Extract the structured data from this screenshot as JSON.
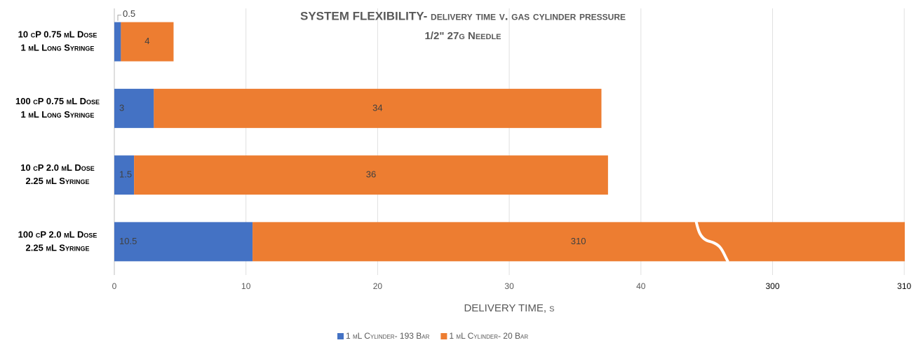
{
  "chart_data": {
    "type": "stacked-barh",
    "title": "SYSTEM FLEXIBILITY- delivery time v. gas cylinder pressure",
    "subtitle": "1/2\" 27g Needle",
    "x_label": "DELIVERY TIME, s",
    "categories": [
      [
        "10 cP 0.75 mL Dose",
        "1 mL Long Syringe"
      ],
      [
        "100 cP 0.75 mL Dose",
        "1 mL Long Syringe"
      ],
      [
        "10 cP 2.0 mL Dose",
        "2.25 mL Syringe"
      ],
      [
        "100 cP 2.0 mL Dose",
        "2.25 mL Syringe"
      ]
    ],
    "series": [
      {
        "name": "1 mL Cylinder- 193 Bar",
        "color": "#4472c4",
        "values": [
          0.5,
          3,
          1.5,
          10.5
        ]
      },
      {
        "name": "1 mL Cylinder- 20 Bar",
        "color": "#ed7d31",
        "values": [
          4,
          34,
          36,
          310
        ]
      }
    ],
    "xlim": [
      0,
      310
    ],
    "xticks": [
      0,
      10,
      20,
      30,
      40,
      300,
      310
    ],
    "axis_break": true,
    "grid": true,
    "legend": "bottom"
  }
}
